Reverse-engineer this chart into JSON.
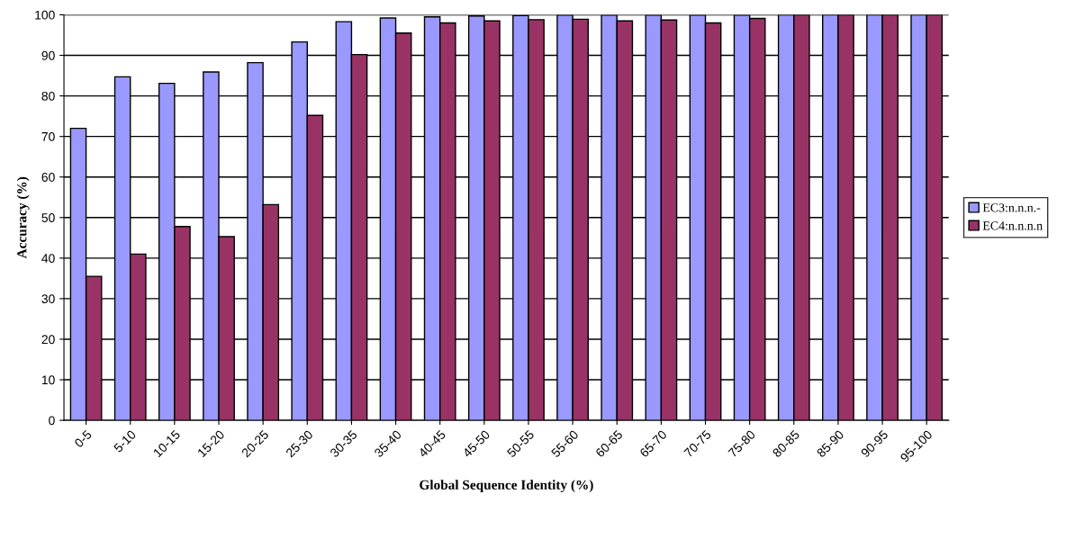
{
  "chart_data": {
    "type": "bar",
    "xlabel": "Global Sequence Identity (%)",
    "ylabel": "Accuracy (%)",
    "categories": [
      "0-5",
      "5-10",
      "10-15",
      "15-20",
      "20-25",
      "25-30",
      "30-35",
      "35-40",
      "40-45",
      "45-50",
      "50-55",
      "55-60",
      "60-65",
      "65-70",
      "70-75",
      "75-80",
      "80-85",
      "85-90",
      "90-95",
      "95-100"
    ],
    "series": [
      {
        "name": "EC3:n.n.n.-",
        "color": "#9999ff",
        "values": [
          72,
          84.7,
          83.1,
          85.9,
          88.2,
          93.3,
          98.3,
          99.2,
          99.5,
          99.7,
          99.8,
          99.9,
          99.9,
          99.9,
          99.9,
          99.9,
          100,
          100,
          100,
          100
        ]
      },
      {
        "name": "EC4:n.n.n.n",
        "color": "#993366",
        "values": [
          35.5,
          41,
          47.8,
          45.3,
          53.2,
          75.2,
          90.2,
          95.5,
          98,
          98.5,
          98.8,
          98.9,
          98.5,
          98.7,
          98,
          99.1,
          100,
          100,
          100,
          100
        ]
      }
    ],
    "ylim": [
      0,
      100
    ],
    "yticks": [
      0,
      10,
      20,
      30,
      40,
      50,
      60,
      70,
      80,
      90,
      100
    ],
    "grid": "y",
    "legend": "right"
  }
}
